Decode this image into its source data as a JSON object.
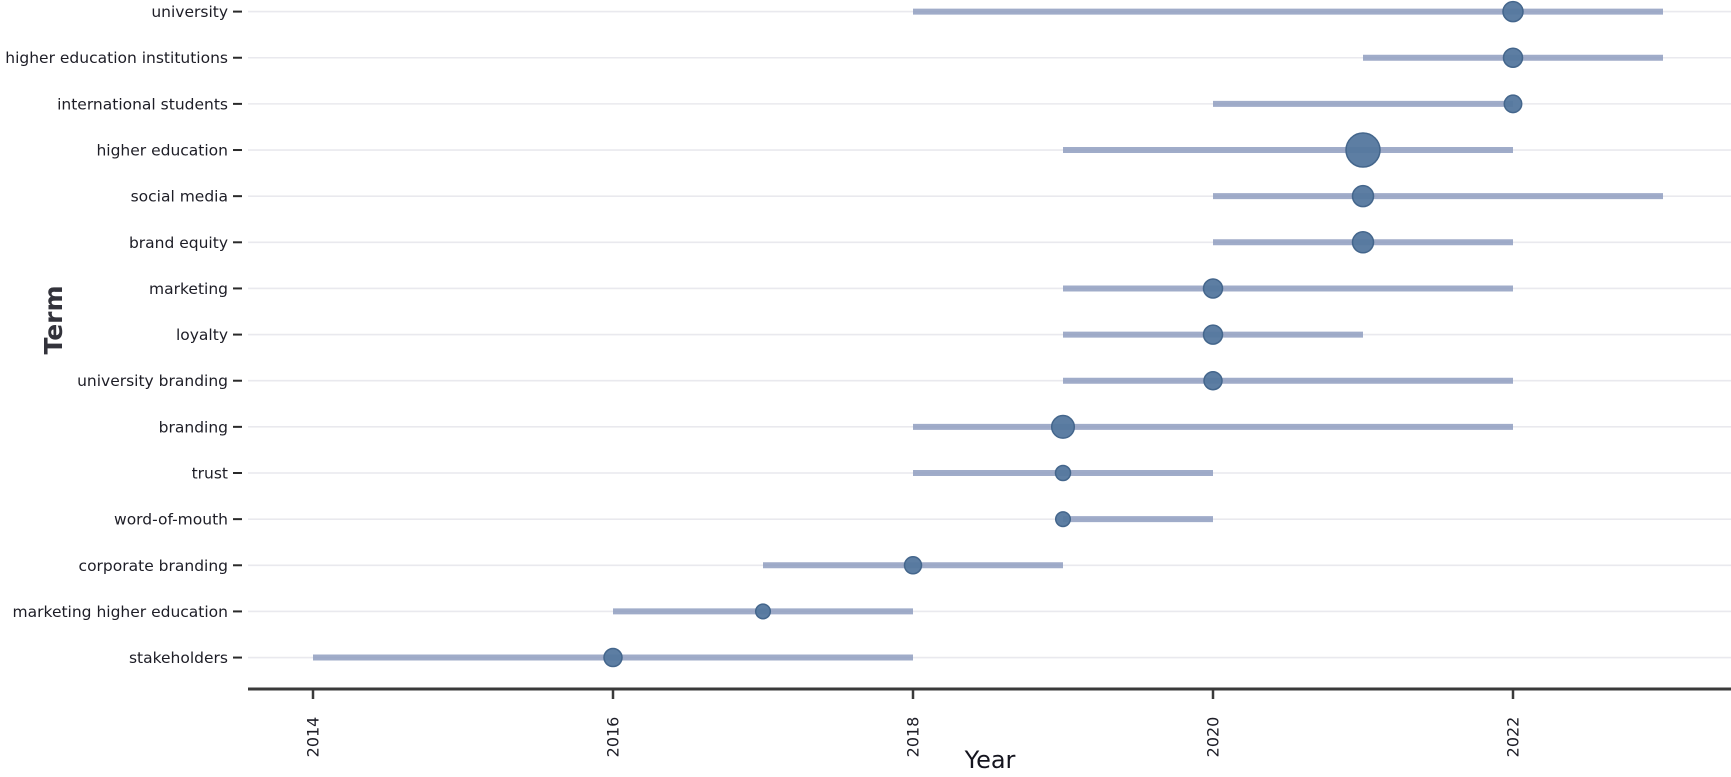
{
  "chart_data": {
    "type": "scatter",
    "subtype": "trend-topics-range-bubble",
    "title": "",
    "xlabel": "Year",
    "ylabel": "Term",
    "x_ticks": [
      2014,
      2016,
      2018,
      2020,
      2022
    ],
    "xlim": [
      2013.55,
      2023.45
    ],
    "grid": "horizontal-only",
    "legend": "none",
    "categories": [
      "university",
      "higher education institutions",
      "international students",
      "higher education",
      "social media",
      "brand equity",
      "marketing",
      "loyalty",
      "university branding",
      "branding",
      "trust",
      "word-of-mouth",
      "corporate branding",
      "marketing higher education",
      "stakeholders"
    ],
    "series": [
      {
        "term": "university",
        "year_start": 2018,
        "year_end": 2023,
        "year_peak": 2022,
        "bubble_radius_px": 10.0
      },
      {
        "term": "higher education institutions",
        "year_start": 2021,
        "year_end": 2023,
        "year_peak": 2022,
        "bubble_radius_px": 9.5
      },
      {
        "term": "international students",
        "year_start": 2020,
        "year_end": 2022,
        "year_peak": 2022,
        "bubble_radius_px": 8.7
      },
      {
        "term": "higher education",
        "year_start": 2019,
        "year_end": 2022,
        "year_peak": 2021,
        "bubble_radius_px": 17.0
      },
      {
        "term": "social media",
        "year_start": 2020,
        "year_end": 2023,
        "year_peak": 2021,
        "bubble_radius_px": 10.5
      },
      {
        "term": "brand equity",
        "year_start": 2020,
        "year_end": 2022,
        "year_peak": 2021,
        "bubble_radius_px": 10.5
      },
      {
        "term": "marketing",
        "year_start": 2019,
        "year_end": 2022,
        "year_peak": 2020,
        "bubble_radius_px": 9.5
      },
      {
        "term": "loyalty",
        "year_start": 2019,
        "year_end": 2021,
        "year_peak": 2020,
        "bubble_radius_px": 9.5
      },
      {
        "term": "university branding",
        "year_start": 2019,
        "year_end": 2022,
        "year_peak": 2020,
        "bubble_radius_px": 9.0
      },
      {
        "term": "branding",
        "year_start": 2018,
        "year_end": 2022,
        "year_peak": 2019,
        "bubble_radius_px": 11.3
      },
      {
        "term": "trust",
        "year_start": 2018,
        "year_end": 2020,
        "year_peak": 2019,
        "bubble_radius_px": 7.5
      },
      {
        "term": "word-of-mouth",
        "year_start": 2019,
        "year_end": 2020,
        "year_peak": 2019,
        "bubble_radius_px": 7.3
      },
      {
        "term": "corporate branding",
        "year_start": 2017,
        "year_end": 2019,
        "year_peak": 2018,
        "bubble_radius_px": 8.5
      },
      {
        "term": "marketing higher education",
        "year_start": 2016,
        "year_end": 2018,
        "year_peak": 2017,
        "bubble_radius_px": 7.3
      },
      {
        "term": "stakeholders",
        "year_start": 2014,
        "year_end": 2018,
        "year_peak": 2016,
        "bubble_radius_px": 9.0
      }
    ]
  },
  "colors": {
    "background": "#ffffff",
    "bubble_fill": "#54779e",
    "bubble_stroke": "#44668c",
    "range_line": "#8f9ec0",
    "gridline": "#e9e9ee",
    "axis_line": "#3a3a3a",
    "tick_text": "#1d1d26"
  }
}
